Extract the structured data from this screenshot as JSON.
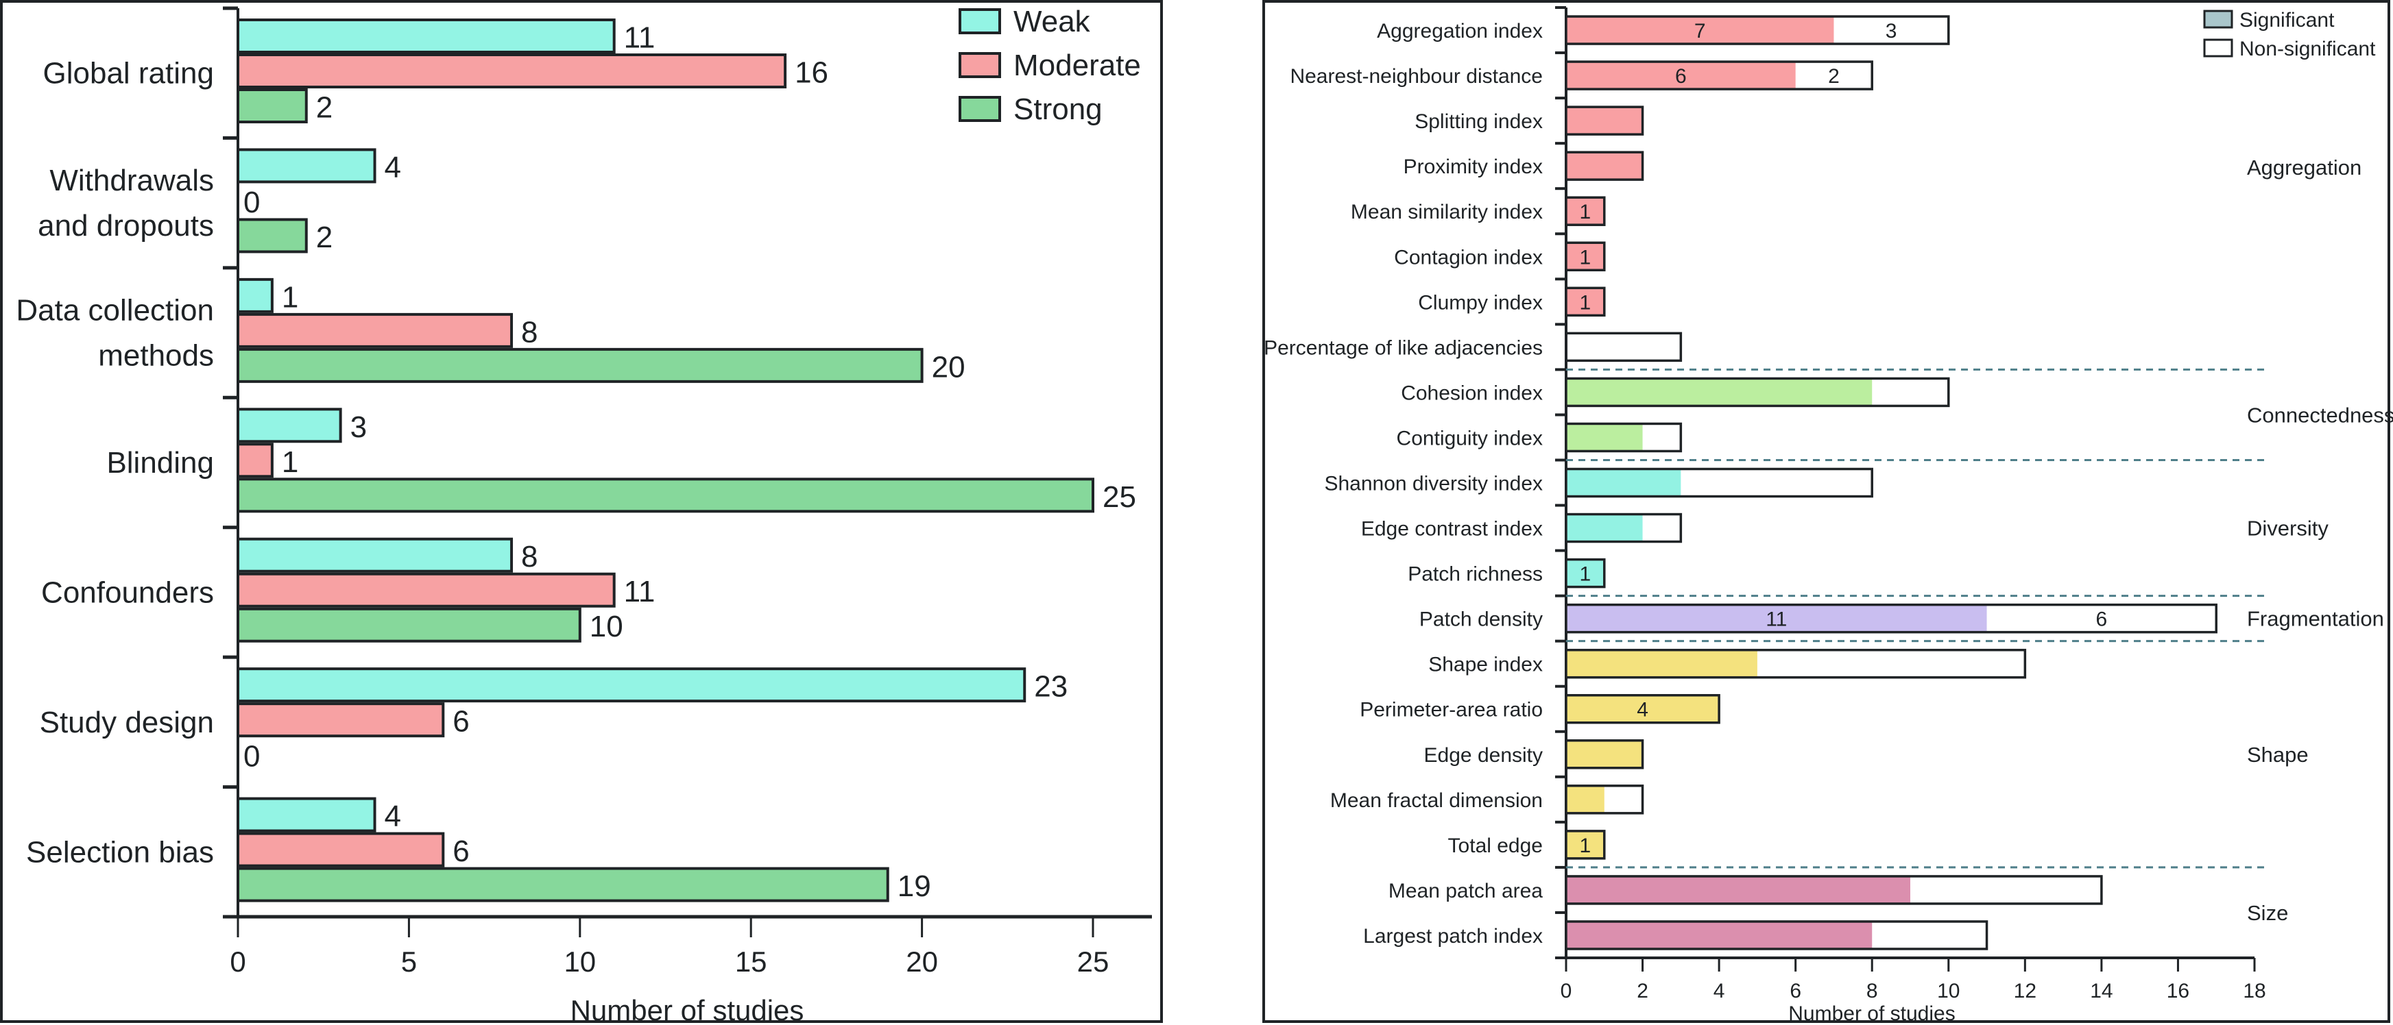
{
  "chart_data": [
    {
      "type": "bar",
      "orientation": "horizontal",
      "title": "",
      "xlabel": "Number of studies",
      "ylabel": "",
      "xlim": [
        0,
        25
      ],
      "xticks": [
        "0",
        "5",
        "10",
        "15",
        "20",
        "25"
      ],
      "grid": false,
      "legend_position": "top-right",
      "categories": [
        "Global rating",
        "Withdrawals and dropouts",
        "Data collection methods",
        "Blinding",
        "Confounders",
        "Study design",
        "Selection bias"
      ],
      "category_lines": [
        [
          "Global rating"
        ],
        [
          "Withdrawals",
          "and dropouts"
        ],
        [
          "Data collection",
          "methods"
        ],
        [
          "Blinding"
        ],
        [
          "Confounders"
        ],
        [
          "Study design"
        ],
        [
          "Selection bias"
        ]
      ],
      "series": [
        {
          "name": "Weak",
          "color": "#93f4e4",
          "values": [
            11,
            4,
            1,
            3,
            8,
            23,
            4
          ]
        },
        {
          "name": "Moderate",
          "color": "#f7a1a3",
          "values": [
            16,
            0,
            8,
            1,
            11,
            6,
            6
          ]
        },
        {
          "name": "Strong",
          "color": "#86d89b",
          "values": [
            2,
            2,
            20,
            25,
            10,
            0,
            19
          ]
        }
      ]
    },
    {
      "type": "bar",
      "orientation": "horizontal",
      "stacked": true,
      "title": "",
      "xlabel": "Number of studies",
      "ylabel": "",
      "xlim": [
        0,
        18
      ],
      "xticks": [
        "0",
        "2",
        "4",
        "6",
        "8",
        "10",
        "12",
        "14",
        "16",
        "18"
      ],
      "grid": false,
      "legend_position": "top-right",
      "legend": [
        {
          "name": "Significant",
          "color": "#a9c6cb"
        },
        {
          "name": "Non-significant",
          "color": "#ffffff"
        }
      ],
      "groups": [
        {
          "name": "Aggregation",
          "color": "#f9a0a3",
          "metrics": [
            {
              "name": "Aggregation index",
              "significant": 7,
              "non_significant": 3,
              "labels": [
                "7",
                "3"
              ]
            },
            {
              "name": "Nearest-neighbour distance",
              "significant": 6,
              "non_significant": 2,
              "labels": [
                "6",
                "2"
              ]
            },
            {
              "name": "Splitting index",
              "significant": 2,
              "non_significant": 0,
              "labels": []
            },
            {
              "name": "Proximity index",
              "significant": 2,
              "non_significant": 0,
              "labels": []
            },
            {
              "name": "Mean similarity index",
              "significant": 1,
              "non_significant": 0,
              "labels": [
                "1"
              ]
            },
            {
              "name": "Contagion index",
              "significant": 1,
              "non_significant": 0,
              "labels": [
                "1"
              ]
            },
            {
              "name": "Clumpy index",
              "significant": 1,
              "non_significant": 0,
              "labels": [
                "1"
              ]
            },
            {
              "name": "Percentage of like adjacencies",
              "significant": 0,
              "non_significant": 3,
              "labels": []
            }
          ]
        },
        {
          "name": "Connectedness",
          "color": "#bbee9f",
          "metrics": [
            {
              "name": "Cohesion index",
              "significant": 8,
              "non_significant": 2,
              "labels": []
            },
            {
              "name": "Contiguity index",
              "significant": 2,
              "non_significant": 1,
              "labels": []
            }
          ]
        },
        {
          "name": "Diversity",
          "color": "#93f2e3",
          "metrics": [
            {
              "name": "Shannon diversity index",
              "significant": 3,
              "non_significant": 5,
              "labels": []
            },
            {
              "name": "Edge contrast index",
              "significant": 2,
              "non_significant": 1,
              "labels": []
            },
            {
              "name": "Patch richness",
              "significant": 1,
              "non_significant": 0,
              "labels": [
                "1"
              ]
            }
          ]
        },
        {
          "name": "Fragmentation",
          "color": "#c9bef0",
          "metrics": [
            {
              "name": "Patch density",
              "significant": 11,
              "non_significant": 6,
              "labels": [
                "11",
                "6"
              ]
            }
          ]
        },
        {
          "name": "Shape",
          "color": "#f4e27e",
          "metrics": [
            {
              "name": "Shape index",
              "significant": 5,
              "non_significant": 7,
              "labels": []
            },
            {
              "name": "Perimeter-area ratio",
              "significant": 4,
              "non_significant": 0,
              "labels": [
                "4"
              ]
            },
            {
              "name": "Edge density",
              "significant": 2,
              "non_significant": 0,
              "labels": []
            },
            {
              "name": "Mean fractal dimension",
              "significant": 1,
              "non_significant": 1,
              "labels": []
            },
            {
              "name": "Total edge",
              "significant": 1,
              "non_significant": 0,
              "labels": [
                "1"
              ]
            }
          ]
        },
        {
          "name": "Size",
          "color": "#db8fae",
          "metrics": [
            {
              "name": "Mean patch area",
              "significant": 9,
              "non_significant": 5,
              "labels": []
            },
            {
              "name": "Largest patch index",
              "significant": 8,
              "non_significant": 3,
              "labels": []
            }
          ]
        }
      ]
    }
  ]
}
